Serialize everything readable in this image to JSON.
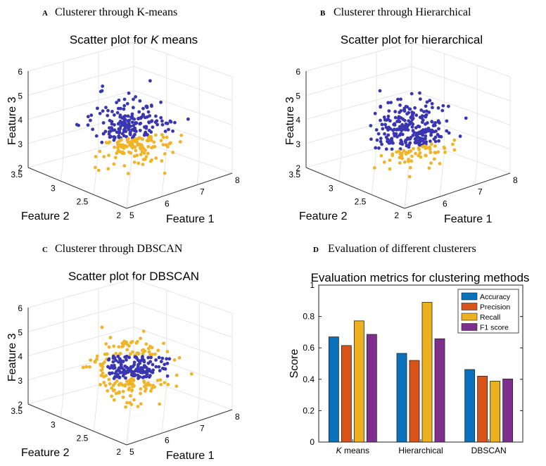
{
  "panels": [
    {
      "letter": "A",
      "heading": "Clusterer through K-means",
      "title_prefix": "Scatter plot for ",
      "title_italic": "K",
      "title_suffix": " means",
      "xlabel": "Feature 1",
      "ylabel": "Feature 2",
      "zlabel": "Feature 3",
      "xticks": [
        "5",
        "6",
        "7",
        "8"
      ],
      "yticks": [
        "2",
        "2.5",
        "3",
        "3.5"
      ],
      "zticks": [
        "2",
        "3",
        "4",
        "5",
        "6"
      ]
    },
    {
      "letter": "B",
      "heading": "Clusterer through Hierarchical",
      "title_prefix": "Scatter plot for hierarchical",
      "title_italic": "",
      "title_suffix": "",
      "xlabel": "Feature 1",
      "ylabel": "Feature 2",
      "zlabel": "Feature 3",
      "xticks": [
        "5",
        "6",
        "7",
        "8"
      ],
      "yticks": [
        "2",
        "2.5",
        "3",
        "3.5"
      ],
      "zticks": [
        "2",
        "3",
        "4",
        "5",
        "6"
      ]
    },
    {
      "letter": "C",
      "heading": "Clusterer through DBSCAN",
      "title_prefix": "Scatter plot for DBSCAN",
      "title_italic": "",
      "title_suffix": "",
      "xlabel": "Feature 1",
      "ylabel": "Feature 2",
      "zlabel": "Feature 3",
      "xticks": [
        "5",
        "6",
        "7",
        "8"
      ],
      "yticks": [
        "2",
        "2.5",
        "3",
        "3.5"
      ],
      "zticks": [
        "2",
        "3",
        "4",
        "5",
        "6"
      ]
    },
    {
      "letter": "D",
      "heading": "Evaluation of different clusterers"
    }
  ],
  "colors": {
    "blue_cluster": "#3a35b0",
    "yellow_cluster": "#f0b429",
    "accuracy": "#0a72bd",
    "precision": "#d95319",
    "recall": "#edb120",
    "f1": "#7e2f8e"
  },
  "chart_data": [
    {
      "type": "scatter",
      "title": "Scatter plot for K means",
      "xlabel": "Feature 1",
      "ylabel": "Feature 2",
      "zlabel": "Feature 3",
      "xlim": [
        5,
        8
      ],
      "ylim": [
        2,
        3.5
      ],
      "zlim": [
        2,
        6
      ],
      "series": [
        {
          "color": "#3a35b0",
          "points": [
            [
              5.1,
              3.5,
              5.4
            ],
            [
              6.6,
              3.0,
              4.0
            ],
            [
              6.2,
              2.8,
              3.6
            ]
          ]
        },
        {
          "color": "#f0b429",
          "points": [
            [
              6.4,
              2.9,
              2.8
            ],
            [
              6.0,
              2.7,
              2.5
            ]
          ]
        }
      ],
      "grid": true
    },
    {
      "type": "scatter",
      "title": "Scatter plot for hierarchical",
      "xlabel": "Feature 1",
      "ylabel": "Feature 2",
      "zlabel": "Feature 3",
      "xlim": [
        5,
        8
      ],
      "ylim": [
        2,
        3.5
      ],
      "zlim": [
        2,
        6
      ],
      "series": [
        {
          "color": "#3a35b0",
          "points": [
            [
              5.1,
              3.5,
              5.4
            ],
            [
              6.6,
              3.0,
              4.0
            ],
            [
              6.2,
              2.8,
              3.6
            ]
          ]
        },
        {
          "color": "#f0b429",
          "points": [
            [
              6.5,
              2.9,
              2.6
            ],
            [
              6.3,
              2.7,
              2.4
            ]
          ]
        }
      ],
      "grid": true
    },
    {
      "type": "scatter",
      "title": "Scatter plot for DBSCAN",
      "xlabel": "Feature 1",
      "ylabel": "Feature 2",
      "zlabel": "Feature 3",
      "xlim": [
        5,
        8
      ],
      "ylim": [
        2,
        3.5
      ],
      "zlim": [
        2,
        6
      ],
      "series": [
        {
          "color": "#3a35b0",
          "points": [
            [
              6.5,
              3.0,
              3.8
            ],
            [
              6.2,
              2.9,
              3.6
            ]
          ]
        },
        {
          "color": "#f0b429",
          "points": [
            [
              5.2,
              3.4,
              5.3
            ],
            [
              6.3,
              2.9,
              3.2
            ],
            [
              6.0,
              2.7,
              2.6
            ]
          ]
        }
      ],
      "grid": true
    },
    {
      "type": "bar",
      "title": "Evaluation metrics for clustering methods",
      "categories": [
        "K means",
        "Hierarchical",
        "DBSCAN"
      ],
      "category_italic_prefix": [
        "K",
        "",
        ""
      ],
      "category_suffix": [
        " means",
        "Hierarchical",
        "DBSCAN"
      ],
      "ylabel": "Score",
      "xlabel": "",
      "ylim": [
        0,
        1
      ],
      "yticks": [
        "0",
        "0.2",
        "0.4",
        "0.6",
        "0.8",
        "1"
      ],
      "legend_position": "top-right",
      "series": [
        {
          "name": "Accuracy",
          "color": "#0a72bd",
          "values": [
            0.67,
            0.565,
            0.462
          ]
        },
        {
          "name": "Precision",
          "color": "#d95319",
          "values": [
            0.615,
            0.52,
            0.42
          ]
        },
        {
          "name": "Recall",
          "color": "#edb120",
          "values": [
            0.772,
            0.89,
            0.388
          ]
        },
        {
          "name": "F1 score",
          "color": "#7e2f8e",
          "values": [
            0.686,
            0.658,
            0.402
          ]
        }
      ]
    }
  ]
}
